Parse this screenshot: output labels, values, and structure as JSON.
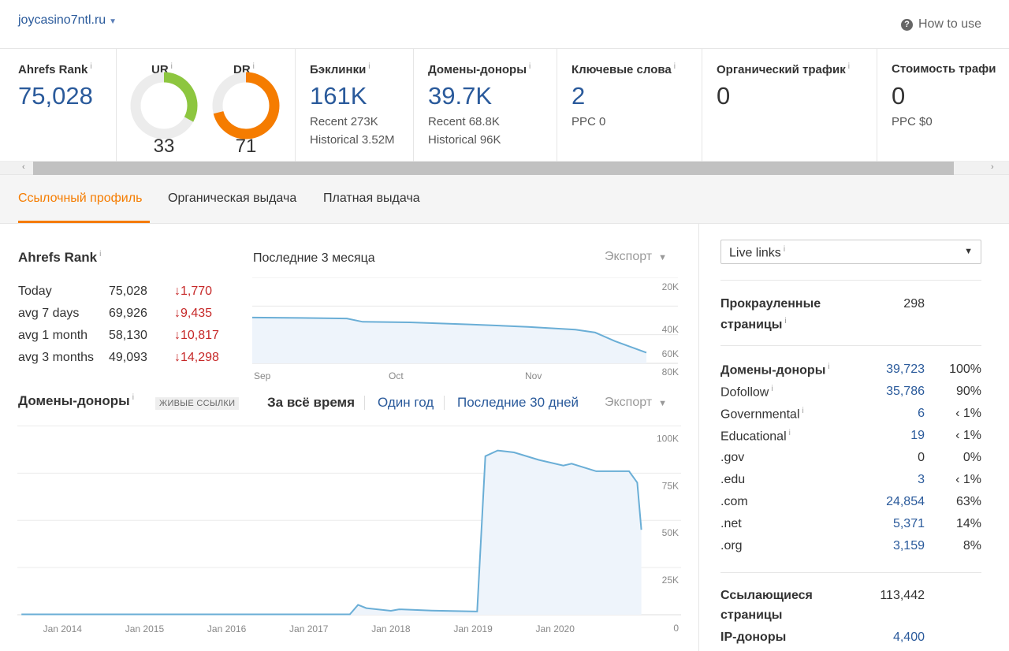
{
  "header": {
    "domain": "joycasino7ntl.ru",
    "how_to_use": "How to use"
  },
  "metrics": {
    "ahrefs_rank": {
      "label": "Ahrefs Rank",
      "value": "75,028"
    },
    "ur": {
      "label": "UR",
      "value": "33",
      "fill_fraction": 0.33,
      "color": "#8dc63f"
    },
    "dr": {
      "label": "DR",
      "value": "71",
      "fill_fraction": 0.71,
      "color": "#f57c00"
    },
    "backlinks": {
      "label": "Бэклинки",
      "value": "161K",
      "recent": "Recent 273K",
      "historical": "Historical 3.52M"
    },
    "ref_domains": {
      "label": "Домены-доноры",
      "value": "39.7K",
      "recent": "Recent 68.8K",
      "historical": "Historical 96K"
    },
    "keywords": {
      "label": "Ключевые слова",
      "value": "2",
      "ppc": "PPC 0"
    },
    "organic_traffic": {
      "label": "Органический трафик",
      "value": "0"
    },
    "traffic_cost": {
      "label": "Стоимость трафи",
      "value": "0",
      "ppc": "PPC $0"
    }
  },
  "tabs": {
    "backlink_profile": "Ссылочный профиль",
    "organic": "Органическая выдача",
    "paid": "Платная выдача"
  },
  "rank_section": {
    "title": "Ahrefs Rank",
    "rows": [
      {
        "label": "Today",
        "value": "75,028",
        "change": "↓1,770"
      },
      {
        "label": "avg 7 days",
        "value": "69,926",
        "change": "↓9,435"
      },
      {
        "label": "avg 1 month",
        "value": "58,130",
        "change": "↓10,817"
      },
      {
        "label": "avg 3 months",
        "value": "49,093",
        "change": "↓14,298"
      }
    ],
    "chart_title": "Последние 3 месяца",
    "export": "Экспорт"
  },
  "domains_section": {
    "title": "Домены-доноры",
    "badge": "ЖИВЫЕ ССЫЛКИ",
    "periods": [
      "За всё время",
      "Один год",
      "Последние 30 дней"
    ],
    "export": "Экспорт"
  },
  "chart_data": [
    {
      "type": "area",
      "title": "Последние 3 месяца",
      "x": [
        "Sep",
        "Oct",
        "Nov"
      ],
      "y_ticks": [
        "20K",
        "40K",
        "60K",
        "80K"
      ],
      "ylim": [
        20000,
        80000
      ],
      "y_inverted": true,
      "series": [
        {
          "values": [
            [
              0,
              48000
            ],
            [
              0.12,
              48300
            ],
            [
              0.24,
              48700
            ],
            [
              0.28,
              51000
            ],
            [
              0.4,
              51400
            ],
            [
              0.55,
              52800
            ],
            [
              0.7,
              54500
            ],
            [
              0.82,
              56500
            ],
            [
              0.87,
              58500
            ],
            [
              0.92,
              64500
            ],
            [
              1.0,
              72500
            ]
          ]
        }
      ],
      "grid": true
    },
    {
      "type": "area",
      "title": "",
      "x_ticks": [
        "Jan 2014",
        "Jan 2015",
        "Jan 2016",
        "Jan 2017",
        "Jan 2018",
        "Jan 2019",
        "Jan 2020"
      ],
      "y_ticks": [
        "0",
        "25K",
        "50K",
        "75K",
        "100K"
      ],
      "ylim": [
        0,
        100000
      ],
      "series": [
        {
          "values": [
            [
              2013.5,
              200
            ],
            [
              2016.5,
              200
            ],
            [
              2017.5,
              200
            ],
            [
              2017.6,
              5200
            ],
            [
              2017.7,
              3500
            ],
            [
              2018.0,
              2100
            ],
            [
              2018.1,
              2900
            ],
            [
              2018.5,
              2200
            ],
            [
              2019.05,
              1700
            ],
            [
              2019.15,
              84000
            ],
            [
              2019.3,
              87000
            ],
            [
              2019.5,
              86000
            ],
            [
              2019.8,
              82000
            ],
            [
              2020.1,
              79000
            ],
            [
              2020.2,
              80000
            ],
            [
              2020.5,
              76000
            ],
            [
              2020.9,
              76000
            ],
            [
              2021.0,
              70000
            ],
            [
              2021.05,
              45000
            ]
          ]
        }
      ],
      "grid": true
    }
  ],
  "stats": {
    "select_label": "Live links",
    "crawled_pages": {
      "label_line1": "Прокрауленные",
      "label_line2": "страницы",
      "value": "298"
    },
    "rows": [
      {
        "label": "Домены-доноры",
        "value": "39,723",
        "pct": "100%",
        "bold": true
      },
      {
        "label": "Dofollow",
        "value": "35,786",
        "pct": "90%"
      },
      {
        "label": "Governmental",
        "value": "6",
        "pct": "‹ 1%"
      },
      {
        "label": "Educational",
        "value": "19",
        "pct": "‹ 1%"
      },
      {
        "label": ".gov",
        "value": "0",
        "pct": "0%"
      },
      {
        "label": ".edu",
        "value": "3",
        "pct": "‹ 1%"
      },
      {
        "label": ".com",
        "value": "24,854",
        "pct": "63%"
      },
      {
        "label": ".net",
        "value": "5,371",
        "pct": "14%"
      },
      {
        "label": ".org",
        "value": "3,159",
        "pct": "8%"
      }
    ],
    "ref_pages": {
      "label_line1": "Ссылающиеся",
      "label_line2": "страницы",
      "value": "113,442"
    },
    "ip_donors": {
      "label": "IP-доноры",
      "value": "4,400"
    }
  }
}
